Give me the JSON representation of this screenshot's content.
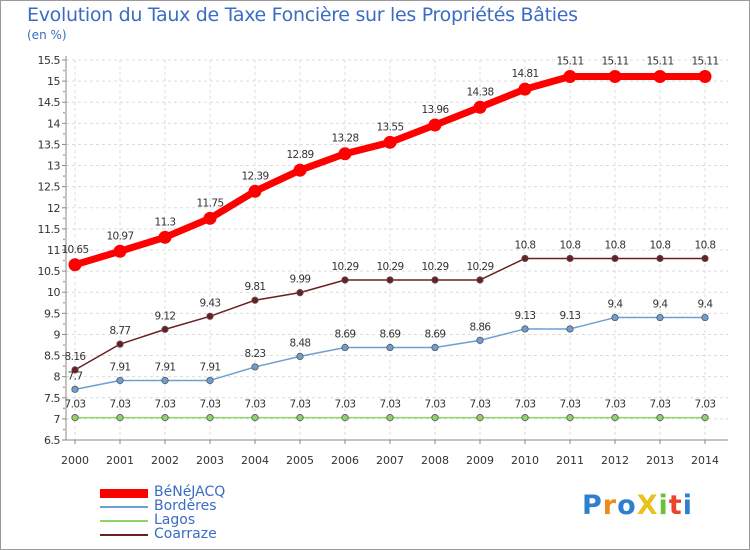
{
  "chart_data": {
    "type": "line",
    "title": "Evolution du Taux de Taxe Foncière sur les Propriétés Bâties",
    "unit_label": "(en %)",
    "xlabel": "",
    "ylabel": "",
    "x": [
      "2000",
      "2001",
      "2002",
      "2003",
      "2004",
      "2005",
      "2006",
      "2007",
      "2008",
      "2009",
      "2010",
      "2011",
      "2012",
      "2013",
      "2014"
    ],
    "ylim": [
      6.5,
      15.5
    ],
    "yticks": [
      "6.5",
      "7",
      "7.5",
      "8",
      "8.5",
      "9",
      "9.5",
      "10",
      "10.5",
      "11",
      "11.5",
      "12",
      "12.5",
      "13",
      "13.5",
      "14",
      "14.5",
      "15",
      "15.5"
    ],
    "grid": true,
    "legend_position": "bottom-left",
    "series": [
      {
        "name": "BéNéJACQ",
        "color": "#ff0000",
        "values": [
          10.65,
          10.97,
          11.3,
          11.75,
          12.39,
          12.89,
          13.28,
          13.55,
          13.96,
          14.38,
          14.81,
          15.11,
          15.11,
          15.11,
          15.11
        ],
        "labels": [
          "10.65",
          "10.97",
          "11.3",
          "11.75",
          "12.39",
          "12.89",
          "13.28",
          "13.55",
          "13.96",
          "14.38",
          "14.81",
          "15.11",
          "15.11",
          "15.11",
          "15.11"
        ]
      },
      {
        "name": "Bordères",
        "color": "#6e9fd4",
        "values": [
          7.7,
          7.91,
          7.91,
          7.91,
          8.23,
          8.48,
          8.69,
          8.69,
          8.69,
          8.86,
          9.13,
          9.13,
          9.4,
          9.4,
          9.4
        ],
        "labels": [
          "7.7",
          "7.91",
          "7.91",
          "7.91",
          "8.23",
          "8.48",
          "8.69",
          "8.69",
          "8.69",
          "8.86",
          "9.13",
          "9.13",
          "9.4",
          "9.4",
          "9.4"
        ]
      },
      {
        "name": "Lagos",
        "color": "#8fd46a",
        "values": [
          7.03,
          7.03,
          7.03,
          7.03,
          7.03,
          7.03,
          7.03,
          7.03,
          7.03,
          7.03,
          7.03,
          7.03,
          7.03,
          7.03,
          7.03
        ],
        "labels": [
          "7.03",
          "7.03",
          "7.03",
          "7.03",
          "7.03",
          "7.03",
          "7.03",
          "7.03",
          "7.03",
          "7.03",
          "7.03",
          "7.03",
          "7.03",
          "7.03",
          "7.03"
        ]
      },
      {
        "name": "Coarraze",
        "color": "#6b1f22",
        "values": [
          8.16,
          8.77,
          9.12,
          9.43,
          9.81,
          9.99,
          10.29,
          10.29,
          10.29,
          10.29,
          10.8,
          10.8,
          10.8,
          10.8,
          10.8
        ],
        "labels": [
          "8.16",
          "8.77",
          "9.12",
          "9.43",
          "9.81",
          "9.99",
          "10.29",
          "10.29",
          "10.29",
          "10.29",
          "10.8",
          "10.8",
          "10.8",
          "10.8",
          "10.8"
        ]
      }
    ]
  },
  "brand": {
    "name": "ProXiti",
    "letters": [
      {
        "ch": "P",
        "color": "#2f7fd0"
      },
      {
        "ch": "r",
        "color": "#f08a1d"
      },
      {
        "ch": "o",
        "color": "#2f7fd0"
      },
      {
        "ch": "X",
        "color": "#e8c21e"
      },
      {
        "ch": "i",
        "color": "#6bbf3a"
      },
      {
        "ch": "t",
        "color": "#e8452a"
      },
      {
        "ch": "i",
        "color": "#2f7fd0"
      }
    ]
  }
}
